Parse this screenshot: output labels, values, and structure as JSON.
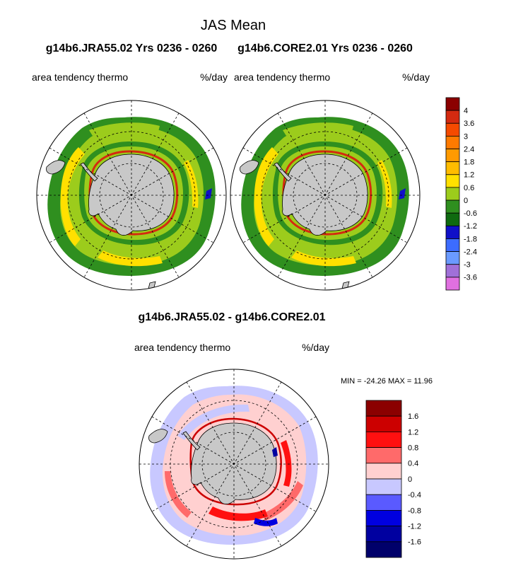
{
  "figure": {
    "title": "JAS Mean",
    "left_run_title": "g14b6.JRA55.02  Yrs 0236 - 0260",
    "right_run_title": "g14b6.CORE2.01  Yrs 0236 - 0260",
    "diff_title": "g14b6.JRA55.02 - g14b6.CORE2.01",
    "variable": "area tendency thermo",
    "units": "%/day",
    "minmax_text": "MIN = -24.26 MAX =  11.96"
  },
  "chart_data": [
    {
      "type": "heatmap",
      "projection": "south-polar-stereographic",
      "title": "g14b6.JRA55.02  Yrs 0236 - 0260",
      "variable": "area tendency thermo",
      "units": "%/day"
    },
    {
      "type": "heatmap",
      "projection": "south-polar-stereographic",
      "title": "g14b6.CORE2.01  Yrs 0236 - 0260",
      "variable": "area tendency thermo",
      "units": "%/day"
    },
    {
      "type": "heatmap",
      "projection": "south-polar-stereographic",
      "title": "g14b6.JRA55.02 - g14b6.CORE2.01",
      "variable": "area tendency thermo",
      "units": "%/day",
      "min": -24.26,
      "max": 11.96
    }
  ],
  "colorbar_top": {
    "labels": [
      "4",
      "3.6",
      "3",
      "2.4",
      "1.8",
      "1.2",
      "0.6",
      "0",
      "-0.6",
      "-1.2",
      "-1.8",
      "-2.4",
      "-3",
      "-3.6"
    ],
    "colors": [
      "#8b0000",
      "#d42a10",
      "#f54a00",
      "#ff7a00",
      "#ff9a00",
      "#ffbc00",
      "#ffe000",
      "#9ccc1c",
      "#2f8f1f",
      "#0f6a10",
      "#1010c8",
      "#3c6cff",
      "#6a9aff",
      "#a070d8",
      "#e070e0"
    ]
  },
  "colorbar_bottom": {
    "labels": [
      "1.6",
      "1.2",
      "0.8",
      "0.4",
      "0",
      "-0.4",
      "-0.8",
      "-1.2",
      "-1.6"
    ],
    "colors": [
      "#8b0000",
      "#cc0000",
      "#ff1010",
      "#ff6a6a",
      "#ffd0d0",
      "#c8c8ff",
      "#5a5aff",
      "#0000e0",
      "#0000a0",
      "#00006a"
    ]
  }
}
